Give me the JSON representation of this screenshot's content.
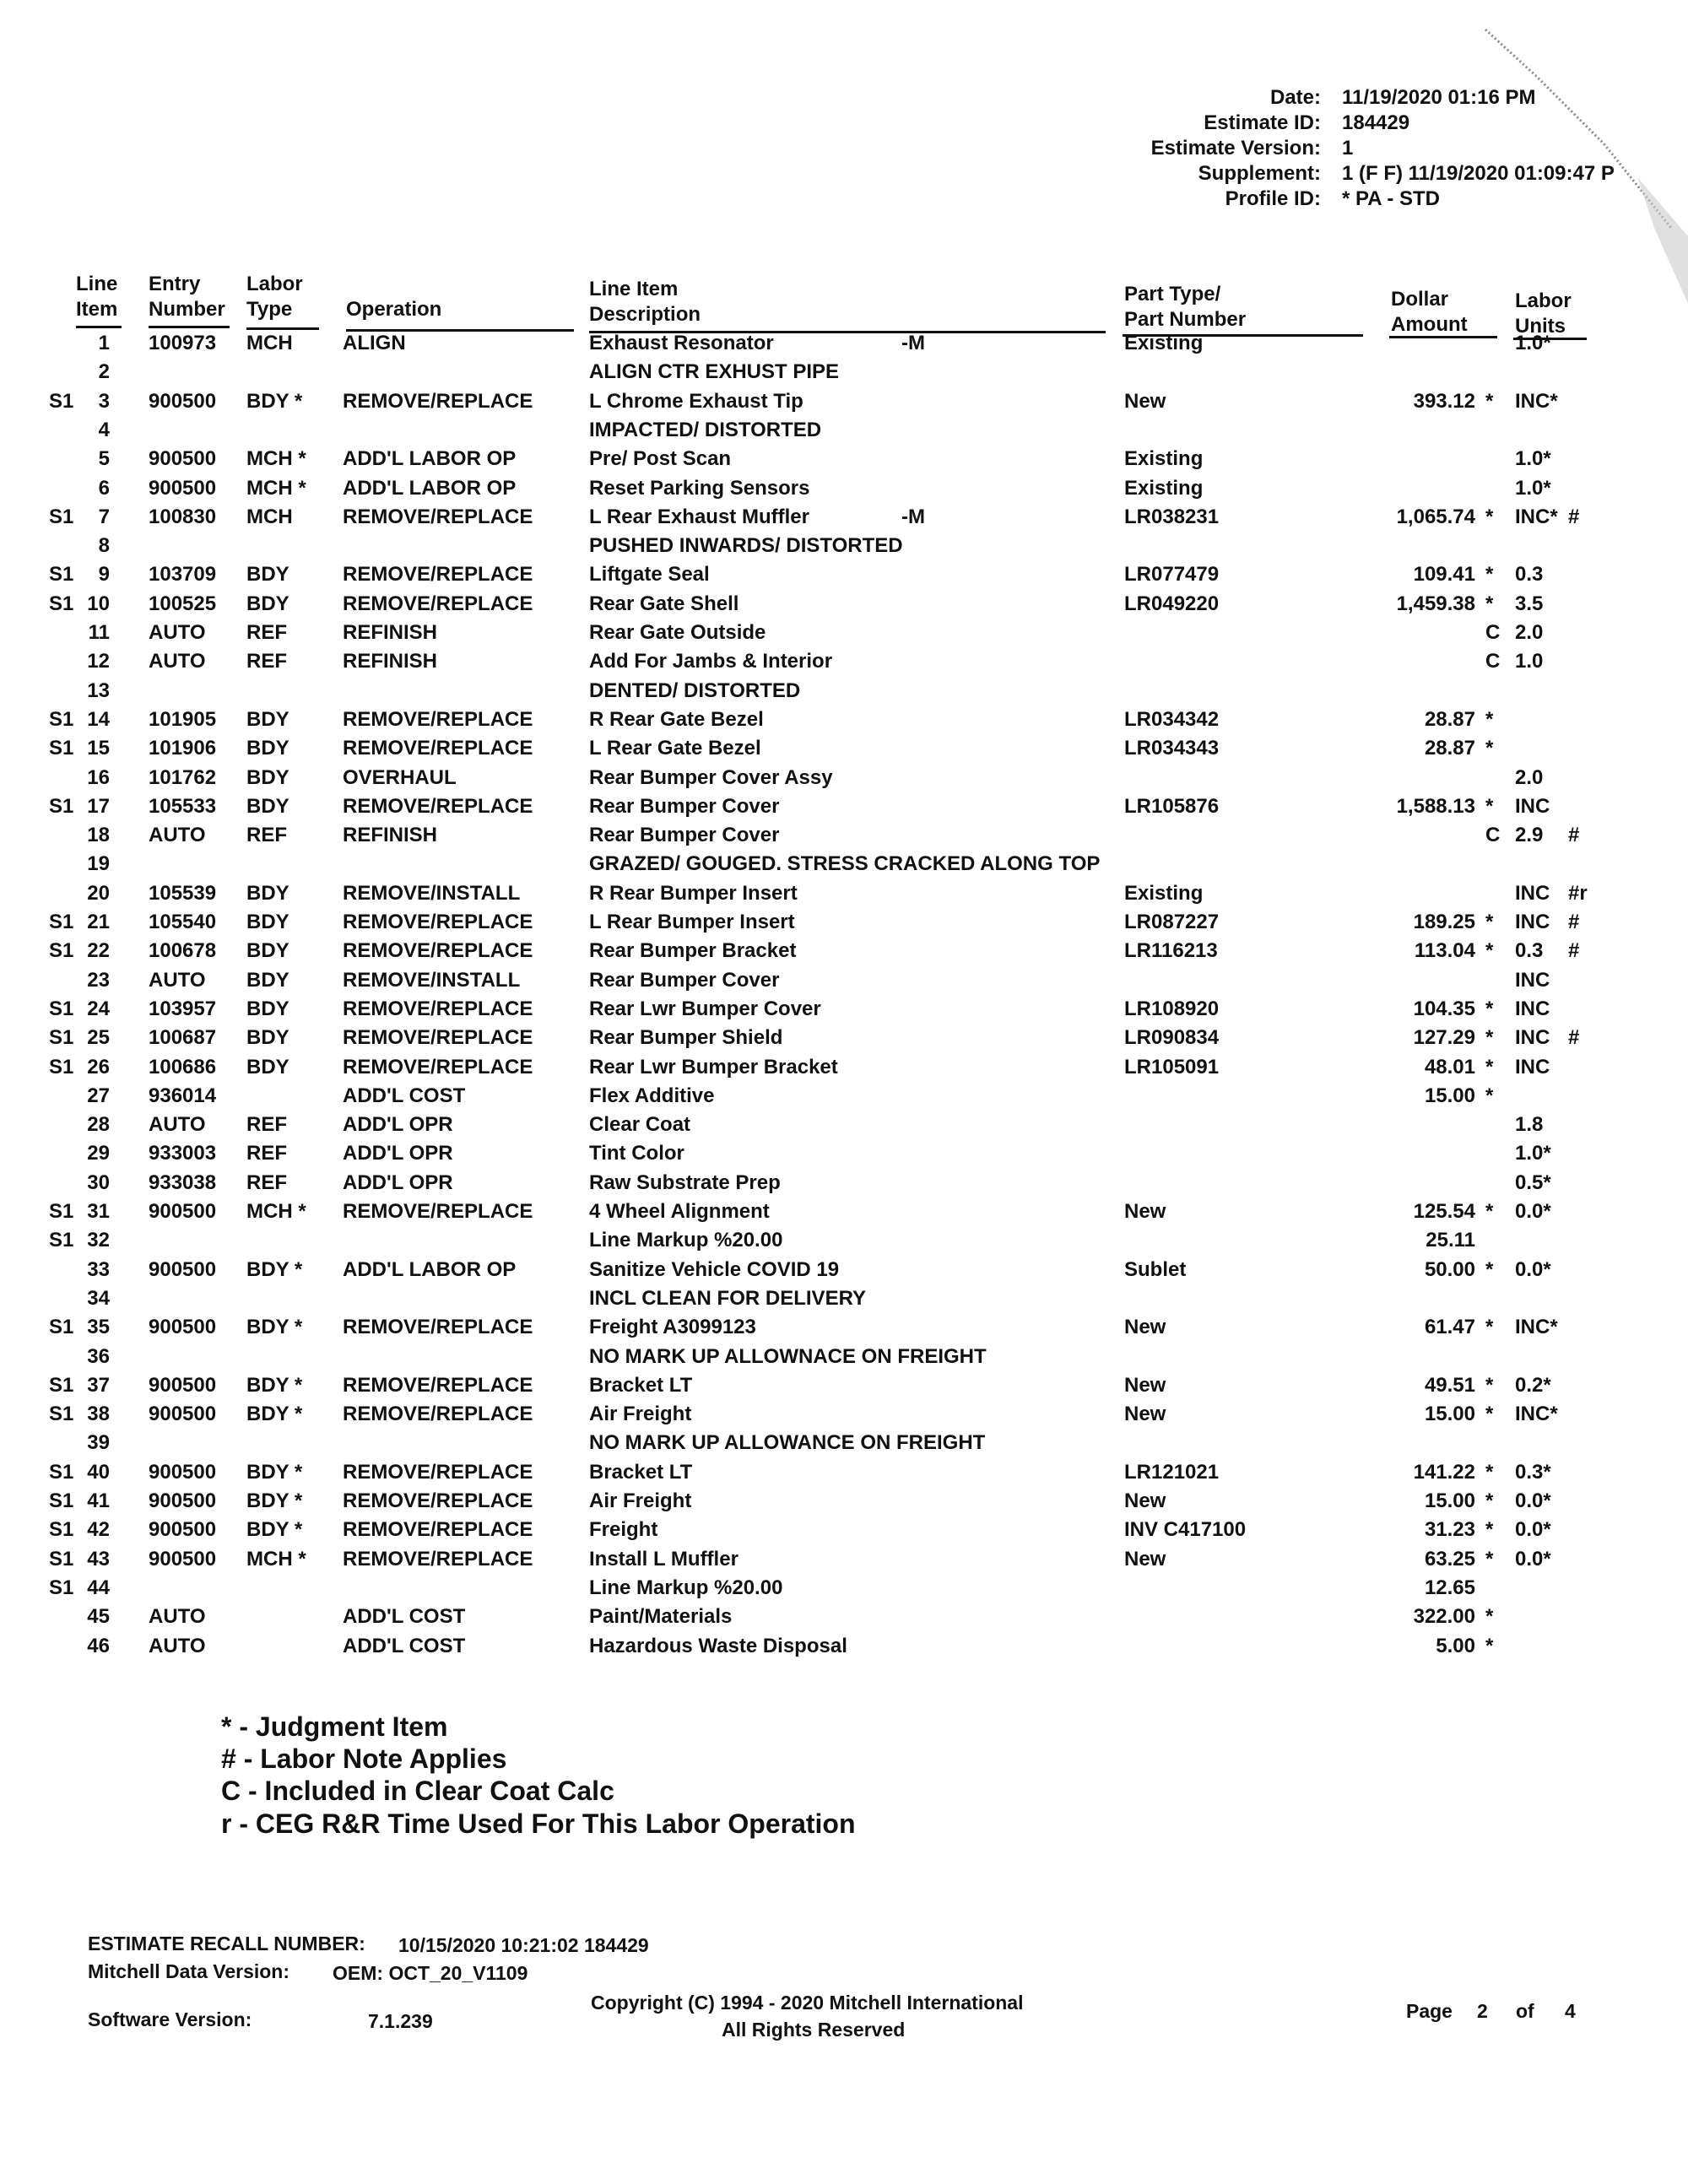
{
  "header": {
    "date_label": "Date:",
    "date": "11/19/2020 01:16 PM",
    "estimate_id_label": "Estimate ID:",
    "estimate_id": "184429",
    "estimate_version_label": "Estimate Version:",
    "estimate_version": "1",
    "supplement_label": "Supplement:",
    "supplement": "1 (F F)  11/19/2020 01:09:47 P",
    "profile_id_label": "Profile ID:",
    "profile_id": "* PA - STD"
  },
  "columns": {
    "line_item": [
      "Line",
      "Item"
    ],
    "entry_number": [
      "Entry",
      "Number"
    ],
    "labor_type": [
      "Labor",
      "Type"
    ],
    "operation": "Operation",
    "description": [
      "Line Item",
      "Description"
    ],
    "part": [
      "Part Type/",
      "Part Number"
    ],
    "amount": [
      "Dollar",
      "Amount"
    ],
    "units": [
      "Labor",
      "Units"
    ]
  },
  "rows": [
    {
      "pre": "",
      "line": "1",
      "entry": "100973",
      "ltype": "MCH",
      "op": "ALIGN",
      "desc": "Exhaust Resonator",
      "note": "-M",
      "part": "Existing",
      "amt": "",
      "flag": "",
      "units": "1.0*",
      "lnote": ""
    },
    {
      "pre": "",
      "line": "2",
      "entry": "",
      "ltype": "",
      "op": "",
      "desc": "ALIGN CTR EXHUST PIPE",
      "note": "",
      "part": "",
      "amt": "",
      "flag": "",
      "units": "",
      "lnote": ""
    },
    {
      "pre": "S1",
      "line": "3",
      "entry": "900500",
      "ltype": "BDY *",
      "op": "REMOVE/REPLACE",
      "desc": "L Chrome Exhaust Tip",
      "note": "",
      "part": "New",
      "amt": "393.12",
      "flag": "*",
      "units": "INC*",
      "lnote": ""
    },
    {
      "pre": "",
      "line": "4",
      "entry": "",
      "ltype": "",
      "op": "",
      "desc": "IMPACTED/ DISTORTED",
      "note": "",
      "part": "",
      "amt": "",
      "flag": "",
      "units": "",
      "lnote": ""
    },
    {
      "pre": "",
      "line": "5",
      "entry": "900500",
      "ltype": "MCH *",
      "op": "ADD'L LABOR OP",
      "desc": "Pre/ Post Scan",
      "note": "",
      "part": "Existing",
      "amt": "",
      "flag": "",
      "units": "1.0*",
      "lnote": ""
    },
    {
      "pre": "",
      "line": "6",
      "entry": "900500",
      "ltype": "MCH *",
      "op": "ADD'L LABOR OP",
      "desc": "Reset Parking Sensors",
      "note": "",
      "part": "Existing",
      "amt": "",
      "flag": "",
      "units": "1.0*",
      "lnote": ""
    },
    {
      "pre": "S1",
      "line": "7",
      "entry": "100830",
      "ltype": "MCH",
      "op": "REMOVE/REPLACE",
      "desc": "L Rear Exhaust Muffler",
      "note": "-M",
      "part": "LR038231",
      "amt": "1,065.74",
      "flag": "*",
      "units": "INC*",
      "lnote": "#"
    },
    {
      "pre": "",
      "line": "8",
      "entry": "",
      "ltype": "",
      "op": "",
      "desc": "PUSHED INWARDS/ DISTORTED",
      "note": "",
      "part": "",
      "amt": "",
      "flag": "",
      "units": "",
      "lnote": ""
    },
    {
      "pre": "S1",
      "line": "9",
      "entry": "103709",
      "ltype": "BDY",
      "op": "REMOVE/REPLACE",
      "desc": "Liftgate Seal",
      "note": "",
      "part": "LR077479",
      "amt": "109.41",
      "flag": "*",
      "units": "0.3",
      "lnote": ""
    },
    {
      "pre": "S1",
      "line": "10",
      "entry": "100525",
      "ltype": "BDY",
      "op": "REMOVE/REPLACE",
      "desc": "Rear Gate Shell",
      "note": "",
      "part": "LR049220",
      "amt": "1,459.38",
      "flag": "*",
      "units": "3.5",
      "lnote": ""
    },
    {
      "pre": "",
      "line": "11",
      "entry": "AUTO",
      "ltype": "REF",
      "op": "REFINISH",
      "desc": "Rear Gate Outside",
      "note": "",
      "part": "",
      "amt": "",
      "flag": "C",
      "units": "2.0",
      "lnote": ""
    },
    {
      "pre": "",
      "line": "12",
      "entry": "AUTO",
      "ltype": "REF",
      "op": "REFINISH",
      "desc": "Add For Jambs & Interior",
      "note": "",
      "part": "",
      "amt": "",
      "flag": "C",
      "units": "1.0",
      "lnote": ""
    },
    {
      "pre": "",
      "line": "13",
      "entry": "",
      "ltype": "",
      "op": "",
      "desc": "DENTED/ DISTORTED",
      "note": "",
      "part": "",
      "amt": "",
      "flag": "",
      "units": "",
      "lnote": ""
    },
    {
      "pre": "S1",
      "line": "14",
      "entry": "101905",
      "ltype": "BDY",
      "op": "REMOVE/REPLACE",
      "desc": "R Rear Gate Bezel",
      "note": "",
      "part": "LR034342",
      "amt": "28.87",
      "flag": "*",
      "units": "",
      "lnote": ""
    },
    {
      "pre": "S1",
      "line": "15",
      "entry": "101906",
      "ltype": "BDY",
      "op": "REMOVE/REPLACE",
      "desc": "L Rear Gate Bezel",
      "note": "",
      "part": "LR034343",
      "amt": "28.87",
      "flag": "*",
      "units": "",
      "lnote": ""
    },
    {
      "pre": "",
      "line": "16",
      "entry": "101762",
      "ltype": "BDY",
      "op": "OVERHAUL",
      "desc": "Rear Bumper Cover Assy",
      "note": "",
      "part": "",
      "amt": "",
      "flag": "",
      "units": "2.0",
      "lnote": ""
    },
    {
      "pre": "S1",
      "line": "17",
      "entry": "105533",
      "ltype": "BDY",
      "op": "REMOVE/REPLACE",
      "desc": "Rear Bumper Cover",
      "note": "",
      "part": "LR105876",
      "amt": "1,588.13",
      "flag": "*",
      "units": "INC",
      "lnote": ""
    },
    {
      "pre": "",
      "line": "18",
      "entry": "AUTO",
      "ltype": "REF",
      "op": "REFINISH",
      "desc": "Rear Bumper Cover",
      "note": "",
      "part": "",
      "amt": "",
      "flag": "C",
      "units": "2.9",
      "lnote": "#"
    },
    {
      "pre": "",
      "line": "19",
      "entry": "",
      "ltype": "",
      "op": "",
      "desc": "GRAZED/ GOUGED. STRESS CRACKED ALONG TOP",
      "note": "",
      "part": "",
      "amt": "",
      "flag": "",
      "units": "",
      "lnote": ""
    },
    {
      "pre": "",
      "line": "20",
      "entry": "105539",
      "ltype": "BDY",
      "op": "REMOVE/INSTALL",
      "desc": "R Rear Bumper Insert",
      "note": "",
      "part": "Existing",
      "amt": "",
      "flag": "",
      "units": "INC",
      "lnote": "#r"
    },
    {
      "pre": "S1",
      "line": "21",
      "entry": "105540",
      "ltype": "BDY",
      "op": "REMOVE/REPLACE",
      "desc": "L Rear Bumper Insert",
      "note": "",
      "part": "LR087227",
      "amt": "189.25",
      "flag": "*",
      "units": "INC",
      "lnote": "#"
    },
    {
      "pre": "S1",
      "line": "22",
      "entry": "100678",
      "ltype": "BDY",
      "op": "REMOVE/REPLACE",
      "desc": "Rear Bumper Bracket",
      "note": "",
      "part": "LR116213",
      "amt": "113.04",
      "flag": "*",
      "units": "0.3",
      "lnote": "#"
    },
    {
      "pre": "",
      "line": "23",
      "entry": "AUTO",
      "ltype": "BDY",
      "op": "REMOVE/INSTALL",
      "desc": "Rear Bumper Cover",
      "note": "",
      "part": "",
      "amt": "",
      "flag": "",
      "units": "INC",
      "lnote": ""
    },
    {
      "pre": "S1",
      "line": "24",
      "entry": "103957",
      "ltype": "BDY",
      "op": "REMOVE/REPLACE",
      "desc": "Rear Lwr Bumper Cover",
      "note": "",
      "part": "LR108920",
      "amt": "104.35",
      "flag": "*",
      "units": "INC",
      "lnote": ""
    },
    {
      "pre": "S1",
      "line": "25",
      "entry": "100687",
      "ltype": "BDY",
      "op": "REMOVE/REPLACE",
      "desc": "Rear Bumper Shield",
      "note": "",
      "part": "LR090834",
      "amt": "127.29",
      "flag": "*",
      "units": "INC",
      "lnote": "#"
    },
    {
      "pre": "S1",
      "line": "26",
      "entry": "100686",
      "ltype": "BDY",
      "op": "REMOVE/REPLACE",
      "desc": "Rear Lwr Bumper Bracket",
      "note": "",
      "part": "LR105091",
      "amt": "48.01",
      "flag": "*",
      "units": "INC",
      "lnote": ""
    },
    {
      "pre": "",
      "line": "27",
      "entry": "936014",
      "ltype": "",
      "op": "ADD'L COST",
      "desc": "Flex Additive",
      "note": "",
      "part": "",
      "amt": "15.00",
      "flag": "*",
      "units": "",
      "lnote": ""
    },
    {
      "pre": "",
      "line": "28",
      "entry": "AUTO",
      "ltype": "REF",
      "op": "ADD'L OPR",
      "desc": "Clear Coat",
      "note": "",
      "part": "",
      "amt": "",
      "flag": "",
      "units": "1.8",
      "lnote": ""
    },
    {
      "pre": "",
      "line": "29",
      "entry": "933003",
      "ltype": "REF",
      "op": "ADD'L OPR",
      "desc": "Tint Color",
      "note": "",
      "part": "",
      "amt": "",
      "flag": "",
      "units": "1.0*",
      "lnote": ""
    },
    {
      "pre": "",
      "line": "30",
      "entry": "933038",
      "ltype": "REF",
      "op": "ADD'L OPR",
      "desc": "Raw Substrate Prep",
      "note": "",
      "part": "",
      "amt": "",
      "flag": "",
      "units": "0.5*",
      "lnote": ""
    },
    {
      "pre": "S1",
      "line": "31",
      "entry": "900500",
      "ltype": "MCH *",
      "op": "REMOVE/REPLACE",
      "desc": "4 Wheel Alignment",
      "note": "",
      "part": "New",
      "amt": "125.54",
      "flag": "*",
      "units": "0.0*",
      "lnote": ""
    },
    {
      "pre": "S1",
      "line": "32",
      "entry": "",
      "ltype": "",
      "op": "",
      "desc": "Line Markup %20.00",
      "note": "",
      "part": "",
      "amt": "25.11",
      "flag": "",
      "units": "",
      "lnote": ""
    },
    {
      "pre": "",
      "line": "33",
      "entry": "900500",
      "ltype": "BDY *",
      "op": "ADD'L LABOR OP",
      "desc": "Sanitize Vehicle COVID 19",
      "note": "",
      "part": "Sublet",
      "amt": "50.00",
      "flag": "*",
      "units": "0.0*",
      "lnote": ""
    },
    {
      "pre": "",
      "line": "34",
      "entry": "",
      "ltype": "",
      "op": "",
      "desc": "INCL CLEAN FOR DELIVERY",
      "note": "",
      "part": "",
      "amt": "",
      "flag": "",
      "units": "",
      "lnote": ""
    },
    {
      "pre": "S1",
      "line": "35",
      "entry": "900500",
      "ltype": "BDY *",
      "op": "REMOVE/REPLACE",
      "desc": "Freight A3099123",
      "note": "",
      "part": "New",
      "amt": "61.47",
      "flag": "*",
      "units": "INC*",
      "lnote": ""
    },
    {
      "pre": "",
      "line": "36",
      "entry": "",
      "ltype": "",
      "op": "",
      "desc": "NO MARK UP ALLOWNACE ON FREIGHT",
      "note": "",
      "part": "",
      "amt": "",
      "flag": "",
      "units": "",
      "lnote": ""
    },
    {
      "pre": "S1",
      "line": "37",
      "entry": "900500",
      "ltype": "BDY *",
      "op": "REMOVE/REPLACE",
      "desc": "Bracket LT",
      "note": "",
      "part": "New",
      "amt": "49.51",
      "flag": "*",
      "units": "0.2*",
      "lnote": ""
    },
    {
      "pre": "S1",
      "line": "38",
      "entry": "900500",
      "ltype": "BDY *",
      "op": "REMOVE/REPLACE",
      "desc": "Air Freight",
      "note": "",
      "part": "New",
      "amt": "15.00",
      "flag": "*",
      "units": "INC*",
      "lnote": ""
    },
    {
      "pre": "",
      "line": "39",
      "entry": "",
      "ltype": "",
      "op": "",
      "desc": "NO MARK UP ALLOWANCE ON FREIGHT",
      "note": "",
      "part": "",
      "amt": "",
      "flag": "",
      "units": "",
      "lnote": ""
    },
    {
      "pre": "S1",
      "line": "40",
      "entry": "900500",
      "ltype": "BDY *",
      "op": "REMOVE/REPLACE",
      "desc": "Bracket LT",
      "note": "",
      "part": "LR121021",
      "amt": "141.22",
      "flag": "*",
      "units": "0.3*",
      "lnote": ""
    },
    {
      "pre": "S1",
      "line": "41",
      "entry": "900500",
      "ltype": "BDY *",
      "op": "REMOVE/REPLACE",
      "desc": "Air Freight",
      "note": "",
      "part": "New",
      "amt": "15.00",
      "flag": "*",
      "units": "0.0*",
      "lnote": ""
    },
    {
      "pre": "S1",
      "line": "42",
      "entry": "900500",
      "ltype": "BDY *",
      "op": "REMOVE/REPLACE",
      "desc": "Freight",
      "note": "",
      "part": "INV C417100",
      "amt": "31.23",
      "flag": "*",
      "units": "0.0*",
      "lnote": ""
    },
    {
      "pre": "S1",
      "line": "43",
      "entry": "900500",
      "ltype": "MCH *",
      "op": "REMOVE/REPLACE",
      "desc": "Install L Muffler",
      "note": "",
      "part": "New",
      "amt": "63.25",
      "flag": "*",
      "units": "0.0*",
      "lnote": ""
    },
    {
      "pre": "S1",
      "line": "44",
      "entry": "",
      "ltype": "",
      "op": "",
      "desc": "Line Markup %20.00",
      "note": "",
      "part": "",
      "amt": "12.65",
      "flag": "",
      "units": "",
      "lnote": ""
    },
    {
      "pre": "",
      "line": "45",
      "entry": "AUTO",
      "ltype": "",
      "op": "ADD'L COST",
      "desc": "Paint/Materials",
      "note": "",
      "part": "",
      "amt": "322.00",
      "flag": "*",
      "units": "",
      "lnote": ""
    },
    {
      "pre": "",
      "line": "46",
      "entry": "AUTO",
      "ltype": "",
      "op": "ADD'L COST",
      "desc": "Hazardous Waste Disposal",
      "note": "",
      "part": "",
      "amt": "5.00",
      "flag": "*",
      "units": "",
      "lnote": ""
    }
  ],
  "legend": [
    "* - Judgment Item",
    "# - Labor Note Applies",
    "C - Included in Clear Coat Calc",
    "r - CEG R&R Time Used For This Labor Operation"
  ],
  "footer": {
    "recall_label": "ESTIMATE RECALL NUMBER:",
    "recall_value": "10/15/2020 10:21:02  184429",
    "data_version_label": "Mitchell Data Version:",
    "data_version_value": "OEM:  OCT_20_V1109",
    "software_label": "Software Version:",
    "software_value": "7.1.239",
    "copyright": "Copyright (C) 1994 - 2020 Mitchell International",
    "rights": "All Rights Reserved",
    "page_label": "Page",
    "page_current": "2",
    "page_of": "of",
    "page_total": "4"
  }
}
